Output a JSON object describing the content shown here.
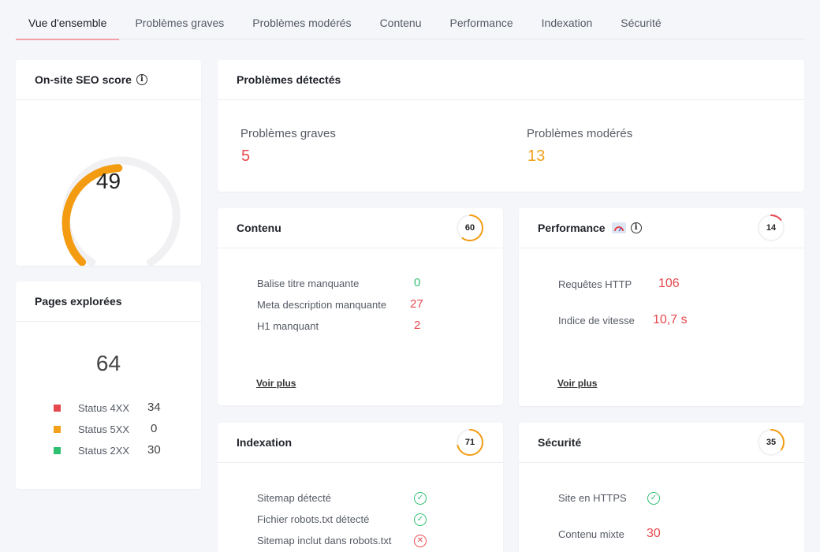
{
  "tabs": [
    {
      "label": "Vue d'ensemble"
    },
    {
      "label": "Problèmes graves"
    },
    {
      "label": "Problèmes modérés"
    },
    {
      "label": "Contenu"
    },
    {
      "label": "Performance"
    },
    {
      "label": "Indexation"
    },
    {
      "label": "Sécurité"
    }
  ],
  "seo_score": {
    "title": "On-site SEO score",
    "value": "49",
    "fraction": 0.49,
    "color": "#f39c12"
  },
  "pages": {
    "title": "Pages explorées",
    "total": "64",
    "items": [
      {
        "label": "Status 4XX",
        "value": "34",
        "color": "#e5484d"
      },
      {
        "label": "Status 5XX",
        "value": "0",
        "color": "#f3a01b"
      },
      {
        "label": "Status 2XX",
        "value": "30",
        "color": "#2fbf71"
      }
    ]
  },
  "problems": {
    "title": "Problèmes détectés",
    "grave_label": "Problèmes graves",
    "grave_value": "5",
    "moderate_label": "Problèmes modérés",
    "moderate_value": "13"
  },
  "contenu": {
    "title": "Contenu",
    "score": "60",
    "score_fraction": 0.6,
    "rows": [
      {
        "label": "Balise titre manquante",
        "value": "0"
      },
      {
        "label": "Meta description manquante",
        "value": "27"
      },
      {
        "label": "H1 manquant",
        "value": "2"
      }
    ],
    "link": "Voir plus"
  },
  "performance": {
    "title": "Performance",
    "score": "14",
    "score_fraction": 0.14,
    "rows": [
      {
        "label": "Requêtes HTTP",
        "value": "106"
      },
      {
        "label": "Indice de vitesse",
        "value": "10,7 s"
      }
    ],
    "link": "Voir plus"
  },
  "indexation": {
    "title": "Indexation",
    "score": "71",
    "score_fraction": 0.71,
    "rows": [
      {
        "label": "Sitemap détecté"
      },
      {
        "label": "Fichier robots.txt détecté"
      },
      {
        "label": "Sitemap inclut dans robots.txt"
      }
    ]
  },
  "securite": {
    "title": "Sécurité",
    "score": "35",
    "score_fraction": 0.35,
    "rows": [
      {
        "label": "Site en HTTPS"
      },
      {
        "label": "Contenu mixte",
        "value": "30"
      }
    ]
  },
  "icons": {
    "info": "info-icon",
    "check": "check-circle-icon",
    "cross": "x-circle-icon",
    "speed": "speedometer-icon"
  }
}
